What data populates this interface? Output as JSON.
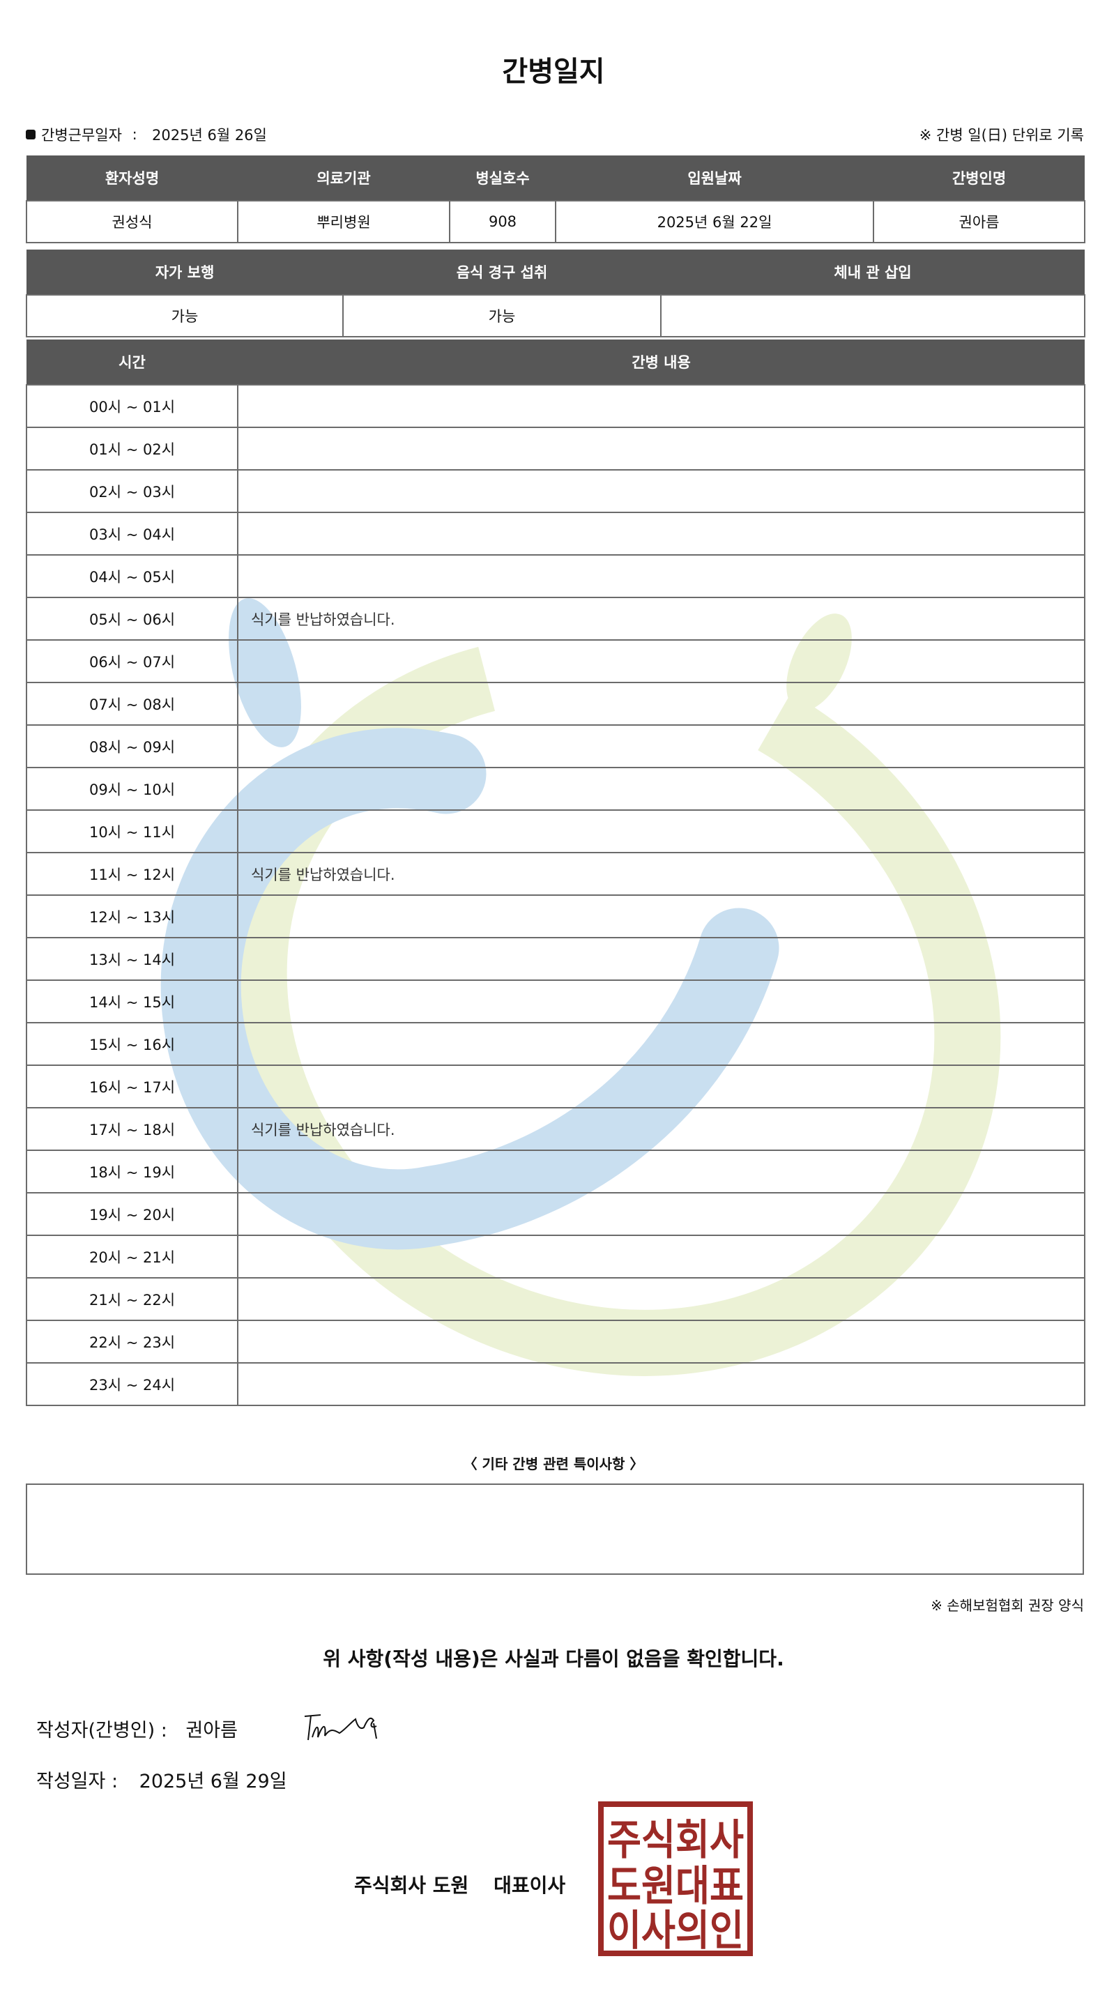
{
  "title": "간병일지",
  "work_date_label": "간병근무일자",
  "work_date": "2025년 6월 26일",
  "record_note": "※ 간병 일(日) 단위로 기록",
  "patient_table": {
    "headers": [
      "환자성명",
      "의료기관",
      "병실호수",
      "입원날짜",
      "간병인명"
    ],
    "values": [
      "권성식",
      "뿌리병원",
      "908",
      "2025년 6월 22일",
      "권아름"
    ]
  },
  "status_table": {
    "headers": [
      "자가 보행",
      "음식 경구 섭취",
      "체내 관 삽입"
    ],
    "values": [
      "가능",
      "가능",
      ""
    ]
  },
  "log_table": {
    "headers": [
      "시간",
      "간병 내용"
    ],
    "rows": [
      {
        "time": "00시 ~ 01시",
        "content": ""
      },
      {
        "time": "01시 ~ 02시",
        "content": ""
      },
      {
        "time": "02시 ~ 03시",
        "content": ""
      },
      {
        "time": "03시 ~ 04시",
        "content": ""
      },
      {
        "time": "04시 ~ 05시",
        "content": ""
      },
      {
        "time": "05시 ~ 06시",
        "content": "식기를 반납하였습니다."
      },
      {
        "time": "06시 ~ 07시",
        "content": ""
      },
      {
        "time": "07시 ~ 08시",
        "content": ""
      },
      {
        "time": "08시 ~ 09시",
        "content": ""
      },
      {
        "time": "09시 ~ 10시",
        "content": ""
      },
      {
        "time": "10시 ~ 11시",
        "content": ""
      },
      {
        "time": "11시 ~ 12시",
        "content": "식기를 반납하였습니다."
      },
      {
        "time": "12시 ~ 13시",
        "content": ""
      },
      {
        "time": "13시 ~ 14시",
        "content": ""
      },
      {
        "time": "14시 ~ 15시",
        "content": ""
      },
      {
        "time": "15시 ~ 16시",
        "content": ""
      },
      {
        "time": "16시 ~ 17시",
        "content": ""
      },
      {
        "time": "17시 ~ 18시",
        "content": "식기를 반납하였습니다."
      },
      {
        "time": "18시 ~ 19시",
        "content": ""
      },
      {
        "time": "19시 ~ 20시",
        "content": ""
      },
      {
        "time": "20시 ~ 21시",
        "content": ""
      },
      {
        "time": "21시 ~ 22시",
        "content": ""
      },
      {
        "time": "22시 ~ 23시",
        "content": ""
      },
      {
        "time": "23시 ~ 24시",
        "content": ""
      }
    ]
  },
  "other_notes_label": "〈 기타 간병 관련 특이사항 〉",
  "other_notes": "",
  "form_note": "※ 손해보험협회 권장 양식",
  "confirm_text": "위 사항(작성 내용)은 사실과 다름이 없음을 확인합니다.",
  "writer_label": "작성자(간병인) :",
  "writer_name": "권아름",
  "write_date_label": "작성일자 :",
  "write_date": "2025년 6월 29일",
  "company": "주식회사 도원",
  "ceo_label": "대표이사",
  "stamp_text": [
    "주식회사",
    "도원대표",
    "이사의인"
  ],
  "colors": {
    "header_bg": "#575757",
    "stamp": "#9c2a26",
    "watermark_blue": "#c9dff0",
    "watermark_green": "#ecf2d6"
  }
}
